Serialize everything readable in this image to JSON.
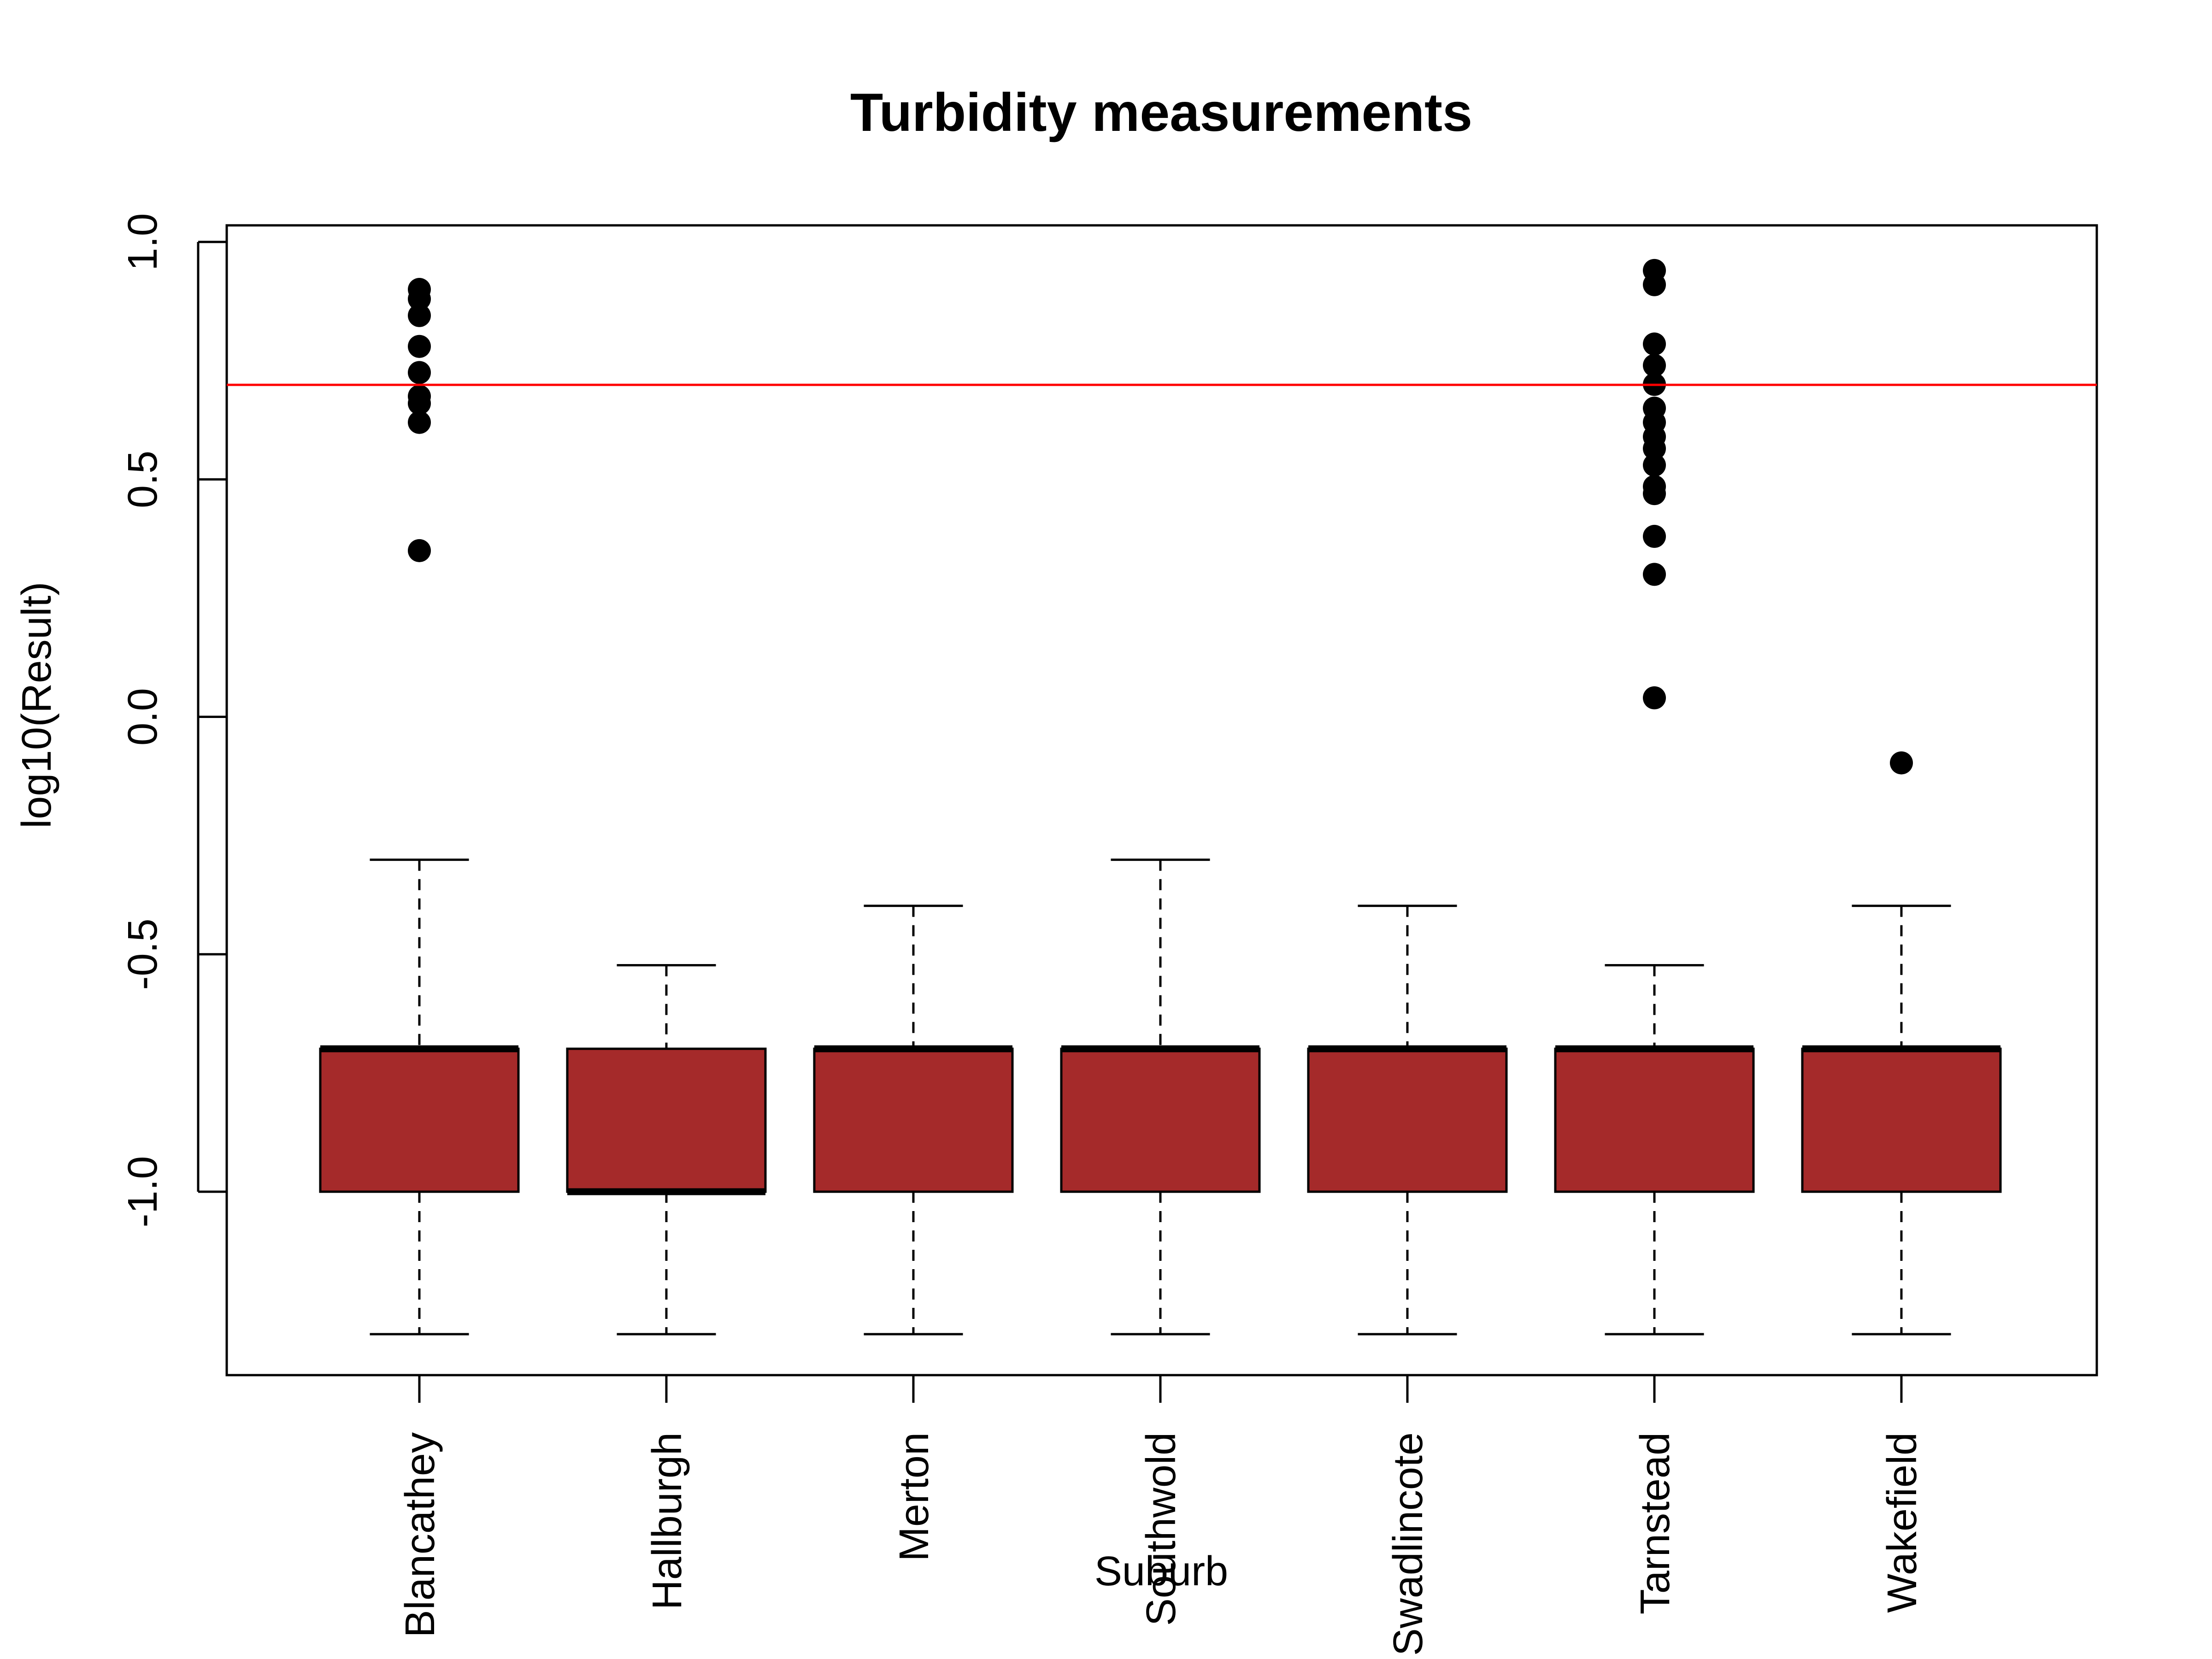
{
  "chart_data": {
    "type": "boxplot",
    "title": "Turbidity measurements",
    "xlabel": "Suburb",
    "ylabel": "log10(Result)",
    "ylim": [
      -1.4,
      1.03
    ],
    "y_ticks": [
      "1.0",
      "0.5",
      "0.0",
      "-0.5",
      "-1.0"
    ],
    "y_tick_values": [
      1.0,
      0.5,
      0.0,
      -0.5,
      -1.0
    ],
    "categories": [
      "Blancathey",
      "Hallburgh",
      "Merton",
      "Southwold",
      "Swadlincote",
      "Tarnstead",
      "Wakefield"
    ],
    "box_color": "#a52a2a",
    "reference_line": {
      "y": 0.699,
      "color": "#ff0000"
    },
    "grid": false,
    "legend": "none",
    "boxes": [
      {
        "whisker_low": -1.3,
        "q1": -1.0,
        "median": -0.699,
        "q3": -0.699,
        "whisker_high": -0.301,
        "outliers": [
          0.9,
          0.88,
          0.845,
          0.78,
          0.725,
          0.675,
          0.66,
          0.62,
          0.35
        ]
      },
      {
        "whisker_low": -1.3,
        "q1": -1.0,
        "median": -1.0,
        "q3": -0.699,
        "whisker_high": -0.523,
        "outliers": []
      },
      {
        "whisker_low": -1.3,
        "q1": -1.0,
        "median": -0.699,
        "q3": -0.699,
        "whisker_high": -0.398,
        "outliers": []
      },
      {
        "whisker_low": -1.3,
        "q1": -1.0,
        "median": -0.699,
        "q3": -0.699,
        "whisker_high": -0.301,
        "outliers": []
      },
      {
        "whisker_low": -1.3,
        "q1": -1.0,
        "median": -0.699,
        "q3": -0.699,
        "whisker_high": -0.398,
        "outliers": []
      },
      {
        "whisker_low": -1.3,
        "q1": -1.0,
        "median": -0.699,
        "q3": -0.699,
        "whisker_high": -0.523,
        "outliers": [
          0.94,
          0.91,
          0.785,
          0.74,
          0.7,
          0.65,
          0.62,
          0.59,
          0.565,
          0.53,
          0.485,
          0.47,
          0.38,
          0.3,
          0.04
        ]
      },
      {
        "whisker_low": -1.3,
        "q1": -1.0,
        "median": -0.699,
        "q3": -0.699,
        "whisker_high": -0.398,
        "outliers": [
          -0.097
        ]
      }
    ]
  }
}
